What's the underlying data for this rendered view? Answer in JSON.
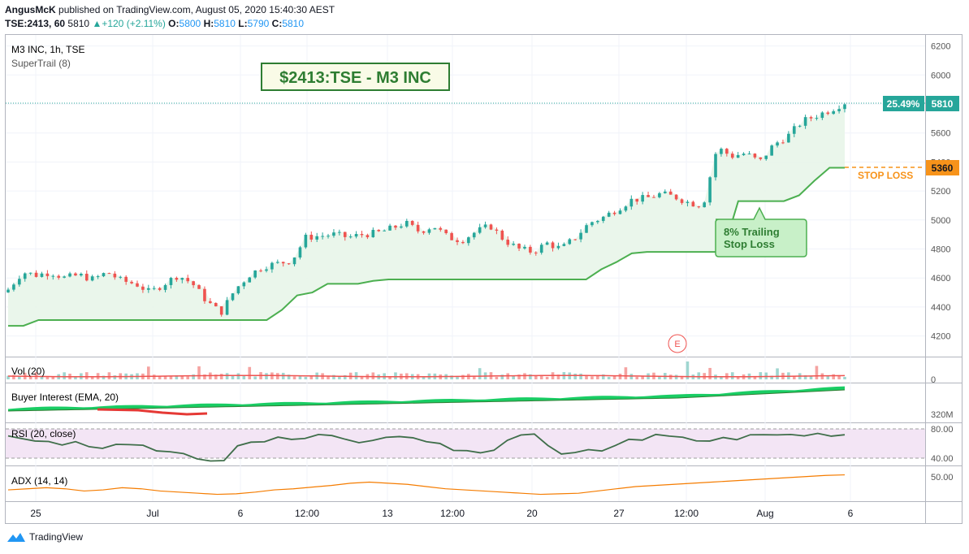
{
  "header": {
    "author": "AngusMcK",
    "published_text": "published on TradingView.com, August 05, 2020 15:40:30 AEST",
    "symbol": "TSE:2413, 60",
    "price": "5810",
    "change_arrow": "▲",
    "change": "+120 (+2.11%)",
    "o_label": "O:",
    "o_value": "5800",
    "h_label": "H:",
    "h_value": "5810",
    "l_label": "L:",
    "l_value": "5790",
    "c_label": "C:",
    "c_value": "5810"
  },
  "main_pane": {
    "title": "M3 INC, 1h, TSE",
    "indicator": "SuperTrail (8)",
    "banner": "$2413:TSE - M3 INC",
    "callout": "8% Trailing\nStop Loss",
    "stop_label": "STOP LOSS",
    "price_badge_pct": "25.49%",
    "price_badge_value": "5810",
    "stop_badge_value": "5360",
    "earnings_marker": "E"
  },
  "panes": {
    "vol_title": "Vol (20)",
    "vol_tick": "0",
    "buyer_title": "Buyer Interest (EMA, 20)",
    "buyer_tick": "320M",
    "rsi_title": "RSI (20, close)",
    "rsi_ticks": [
      "80.00",
      "40.00"
    ],
    "adx_title": "ADX (14, 14)",
    "adx_tick": "50.00"
  },
  "x_axis": [
    "25",
    "Jul",
    "6",
    "12:00",
    "13",
    "12:00",
    "20",
    "27",
    "12:00",
    "Aug",
    "6"
  ],
  "y_axis": [
    "6200",
    "6000",
    "5800",
    "5600",
    "5400",
    "5200",
    "5000",
    "4800",
    "4600",
    "4400",
    "4200"
  ],
  "colors": {
    "up": "#26a69a",
    "down": "#ef5350",
    "trail": "#4caf50",
    "stop": "#f7931a",
    "rsi_bg": "#f3e5f5",
    "adx": "#f57c00"
  },
  "footer": {
    "brand": "TradingView",
    "logo_icon": "tradingview-logo-icon"
  },
  "chart_data": [
    {
      "type": "candlestick",
      "title": "M3 INC, 1h, TSE",
      "ylim": [
        4100,
        6250
      ],
      "x_ticks": [
        "25",
        "Jul",
        "6",
        "12:00",
        "13",
        "12:00",
        "20",
        "27",
        "12:00",
        "Aug",
        "6"
      ],
      "series": [
        {
          "name": "price (approx. closes)",
          "values": [
            4520,
            4640,
            4620,
            4640,
            4600,
            4620,
            4590,
            4640,
            4580,
            4560,
            4500,
            4560,
            4620,
            4560,
            4440,
            4360,
            4520,
            4620,
            4680,
            4700,
            4720,
            4880,
            4890,
            4900,
            4880,
            4900,
            4910,
            4940,
            4980,
            4920,
            4960,
            4880,
            4860,
            4920,
            4960,
            4860,
            4800,
            4780,
            4840,
            4800,
            4880,
            4980,
            5020,
            5080,
            5140,
            5150,
            5180,
            5160,
            5120,
            5100,
            5500,
            5440,
            5460,
            5400,
            5520,
            5580,
            5680,
            5720,
            5760,
            5810
          ]
        },
        {
          "name": "SuperTrail (8)",
          "values": [
            4270,
            4270,
            4310,
            4310,
            4310,
            4310,
            4310,
            4310,
            4310,
            4310,
            4310,
            4310,
            4310,
            4310,
            4310,
            4310,
            4310,
            4310,
            4380,
            4480,
            4500,
            4560,
            4560,
            4560,
            4580,
            4590,
            4590,
            4590,
            4590,
            4590,
            4590,
            4590,
            4590,
            4590,
            4590,
            4590,
            4590,
            4590,
            4590,
            4660,
            4710,
            4770,
            4780,
            4780,
            4780,
            4780,
            4780,
            4780,
            5130,
            5130,
            5130,
            5130,
            5170,
            5270,
            5360,
            5360
          ]
        }
      ]
    },
    {
      "type": "bar",
      "title": "Vol (20)",
      "ylim": [
        0,
        null
      ]
    },
    {
      "type": "line",
      "title": "RSI (20, close)",
      "ylim": [
        20,
        85
      ],
      "bands": [
        40,
        80
      ]
    },
    {
      "type": "line",
      "title": "ADX (14, 14)",
      "ylim": [
        15,
        60
      ]
    }
  ]
}
